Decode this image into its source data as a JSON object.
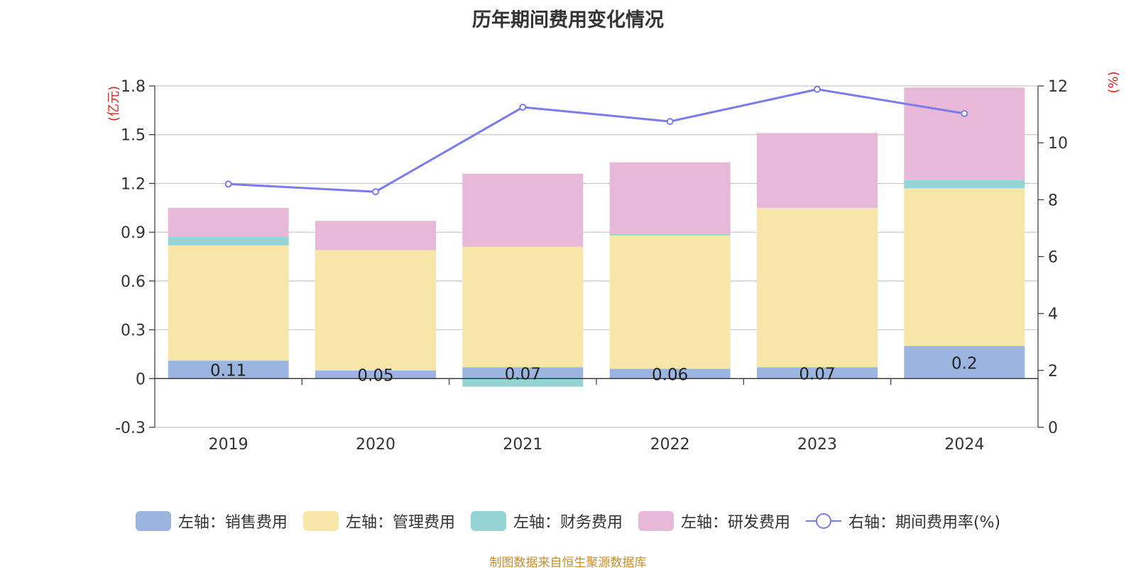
{
  "title": "历年期间费用变化情况",
  "source_note": "制图数据来自恒生聚源数据库",
  "colors": {
    "sales": "#9bb5e0",
    "management": "#f8e6a8",
    "finance": "#95d4d4",
    "rd": "#e8b8d8",
    "rate_line": "#7b7ceb",
    "axis_unit": "#e8221b",
    "grid": "#c8c8c8",
    "text": "#333333"
  },
  "legend": [
    {
      "key": "sales",
      "label": "左轴：销售费用",
      "type": "bar"
    },
    {
      "key": "management",
      "label": "左轴：管理费用",
      "type": "bar"
    },
    {
      "key": "finance",
      "label": "左轴：财务费用",
      "type": "bar"
    },
    {
      "key": "rd",
      "label": "左轴：研发费用",
      "type": "bar"
    },
    {
      "key": "rate",
      "label": "右轴：期间费用率(%)",
      "type": "line"
    }
  ],
  "chart_data": {
    "type": "bar",
    "title": "历年期间费用变化情况",
    "categories": [
      "2019",
      "2020",
      "2021",
      "2022",
      "2023",
      "2024"
    ],
    "left_axis": {
      "unit_label": "(亿元)",
      "ylim": [
        -0.3,
        1.8
      ],
      "ticks": [
        "-0.3",
        "0",
        "0.3",
        "0.6",
        "0.9",
        "1.2",
        "1.5",
        "1.8"
      ]
    },
    "right_axis": {
      "unit_label": "(%)",
      "ylim": [
        0,
        12
      ],
      "ticks": [
        "0",
        "2",
        "4",
        "6",
        "8",
        "10",
        "12"
      ]
    },
    "series": [
      {
        "name": "左轴：销售费用",
        "key": "sales",
        "stack": true,
        "values": [
          0.11,
          0.05,
          0.07,
          0.06,
          0.07,
          0.2
        ]
      },
      {
        "name": "左轴：管理费用",
        "key": "management",
        "stack": true,
        "values": [
          0.71,
          0.74,
          0.74,
          0.82,
          0.98,
          0.97
        ]
      },
      {
        "name": "左轴：财务费用",
        "key": "finance",
        "stack": true,
        "values": [
          0.05,
          0.0,
          -0.05,
          0.01,
          0.0,
          0.05
        ]
      },
      {
        "name": "左轴：研发费用",
        "key": "rd",
        "stack": true,
        "values": [
          0.18,
          0.18,
          0.45,
          0.44,
          0.46,
          0.57
        ]
      },
      {
        "name": "右轴：期间费用率(%)",
        "key": "rate",
        "axis": "right",
        "type": "line",
        "values": [
          8.55,
          8.28,
          11.25,
          10.75,
          11.88,
          11.03
        ]
      }
    ],
    "data_labels": {
      "series": "sales",
      "values": [
        "0.11",
        "0.05",
        "0.07",
        "0.06",
        "0.07",
        "0.2"
      ]
    },
    "grid": true,
    "legend_position": "bottom"
  }
}
